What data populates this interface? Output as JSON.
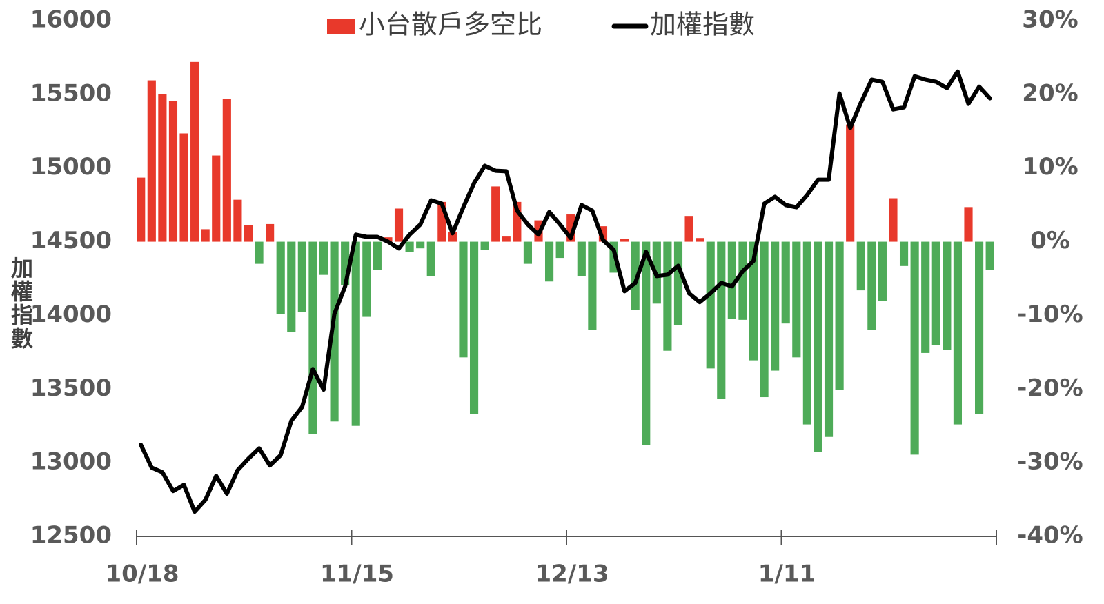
{
  "chart_data": {
    "type": "bar",
    "y_label": "加權指數",
    "categories": [
      "10/18",
      null,
      null,
      null,
      null,
      null,
      null,
      null,
      null,
      null,
      null,
      null,
      null,
      null,
      null,
      null,
      null,
      null,
      null,
      null,
      "11/15",
      null,
      null,
      null,
      null,
      null,
      null,
      null,
      null,
      null,
      null,
      null,
      null,
      null,
      null,
      null,
      null,
      null,
      null,
      null,
      "12/13",
      null,
      null,
      null,
      null,
      null,
      null,
      null,
      null,
      null,
      null,
      null,
      null,
      null,
      null,
      null,
      null,
      null,
      null,
      null,
      "1/11",
      null,
      null,
      null,
      null,
      null,
      null,
      null,
      null,
      null,
      null,
      null,
      null,
      null,
      null,
      null,
      null,
      null,
      null,
      null
    ],
    "series": [
      {
        "name": "小台散戶多空比",
        "type": "bar",
        "axis": "y2",
        "color": "#e8392b",
        "negative_color": "#4eab58",
        "values": [
          8.7,
          21.9,
          20.0,
          19.1,
          14.7,
          24.4,
          1.7,
          11.7,
          19.4,
          5.7,
          2.3,
          -3.0,
          2.4,
          -9.8,
          -12.3,
          -9.5,
          -26.1,
          -4.5,
          -24.4,
          -5.9,
          -25.0,
          -10.2,
          -3.8,
          0.6,
          4.5,
          -1.4,
          -0.9,
          -4.7,
          5.4,
          1.3,
          -15.7,
          -23.4,
          -1.1,
          7.5,
          0.7,
          5.4,
          -3.0,
          2.9,
          -5.4,
          -2.2,
          3.7,
          -4.7,
          -12.0,
          2.1,
          -4.2,
          0.4,
          -9.3,
          -27.6,
          -8.4,
          -14.8,
          -11.3,
          3.5,
          0.5,
          -17.2,
          -21.3,
          -10.5,
          -10.6,
          -16.1,
          -21.1,
          -17.5,
          -11.1,
          -15.7,
          -24.8,
          -28.5,
          -26.5,
          -20.1,
          15.9,
          -6.6,
          -12.0,
          -8.0,
          5.9,
          -3.3,
          -28.9,
          -15.1,
          -14.0,
          -14.7,
          -24.8,
          4.7,
          -23.4,
          -3.8
        ]
      },
      {
        "name": "加權指數",
        "type": "line",
        "axis": "y",
        "color": "#000000",
        "values": [
          13122,
          12967,
          12935,
          12808,
          12850,
          12668,
          12748,
          12911,
          12790,
          12949,
          13028,
          13098,
          12981,
          13051,
          13285,
          13379,
          13636,
          13496,
          14010,
          14197,
          14548,
          14533,
          14533,
          14500,
          14454,
          14548,
          14617,
          14781,
          14758,
          14557,
          14734,
          14898,
          15015,
          14982,
          14978,
          14711,
          14617,
          14548,
          14702,
          14617,
          14524,
          14749,
          14711,
          14510,
          14444,
          14164,
          14220,
          14431,
          14267,
          14276,
          14337,
          14150,
          14090,
          14150,
          14220,
          14197,
          14300,
          14370,
          14758,
          14805,
          14749,
          14734,
          14818,
          14921,
          14921,
          15506,
          15272,
          15445,
          15600,
          15585,
          15398,
          15412,
          15623,
          15600,
          15585,
          15543,
          15655,
          15435,
          15552,
          15473
        ]
      }
    ],
    "ylim": [
      12500,
      16000
    ],
    "yticks": [
      12500,
      13000,
      13500,
      14000,
      14500,
      15000,
      15500,
      16000
    ],
    "y2lim": [
      -40,
      30
    ],
    "y2ticks": [
      {
        "value": -40,
        "label": "-40%"
      },
      {
        "value": -30,
        "label": "-30%"
      },
      {
        "value": -20,
        "label": "-20%"
      },
      {
        "value": -10,
        "label": "-10%"
      },
      {
        "value": 0,
        "label": "0%"
      },
      {
        "value": 10,
        "label": "10%"
      },
      {
        "value": 20,
        "label": "20%"
      },
      {
        "value": 30,
        "label": "30%"
      }
    ],
    "grid": false
  }
}
